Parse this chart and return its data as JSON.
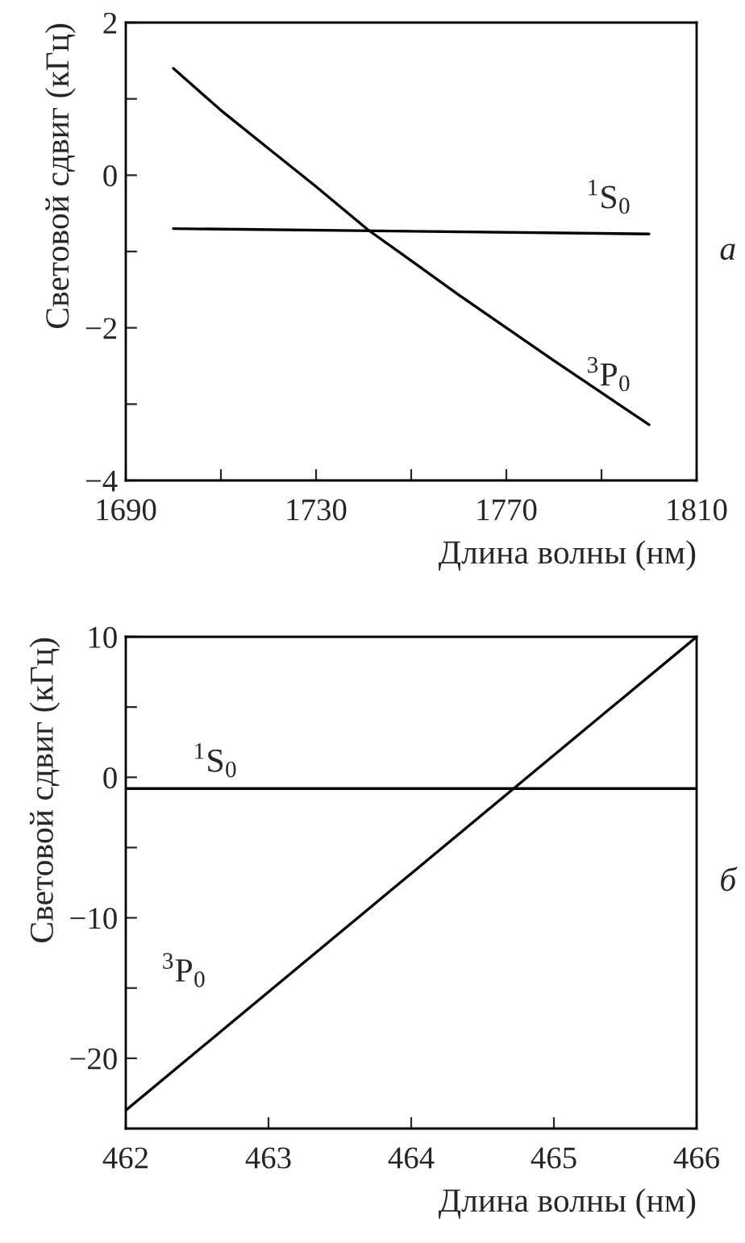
{
  "chart_data": [
    {
      "type": "line",
      "xlabel": "Длина волны (нм)",
      "ylabel": "Световой сдвиг (кГц)",
      "annotations": [
        "а"
      ],
      "xlim": [
        1690,
        1810
      ],
      "xticks": [
        1690,
        {
          "value": 1710,
          "label": null
        },
        1730,
        {
          "value": 1750,
          "label": null
        },
        1770,
        {
          "value": 1790,
          "label": null
        },
        1810
      ],
      "ylim": [
        -4,
        2
      ],
      "yticks": [
        {
          "value": -4,
          "label": "−4"
        },
        {
          "value": -3,
          "label": null
        },
        {
          "value": -2,
          "label": "−2"
        },
        {
          "value": -1,
          "label": null
        },
        0,
        {
          "value": 1,
          "label": null
        },
        2
      ],
      "grid": false,
      "legend": false,
      "line_style": "solid",
      "series": [
        {
          "name": "$^{1}$S$_{0}$",
          "color": "#000000",
          "x": [
            1700,
            1800
          ],
          "values": [
            -0.7,
            -0.77
          ]
        },
        {
          "name": "$^{3}$P$_{0}$",
          "color": "#000000",
          "x": [
            1700,
            1710,
            1720,
            1730,
            1741,
            1750,
            1760,
            1770,
            1780,
            1790,
            1800
          ],
          "values": [
            1.4,
            0.85,
            0.35,
            -0.15,
            -0.72,
            -1.12,
            -1.57,
            -2.0,
            -2.43,
            -2.85,
            -3.27
          ]
        }
      ]
    },
    {
      "type": "line",
      "xlabel": "Длина волны (нм)",
      "ylabel": "Световой сдвиг (кГц)",
      "annotations": [
        "б"
      ],
      "xlim": [
        462,
        466
      ],
      "xticks": [
        462,
        463,
        464,
        465,
        466
      ],
      "ylim": [
        -25,
        10
      ],
      "yticks": [
        {
          "value": -20,
          "label": "−20"
        },
        {
          "value": -15,
          "label": null
        },
        {
          "value": -10,
          "label": "−10"
        },
        {
          "value": -5,
          "label": null
        },
        0,
        {
          "value": 5,
          "label": null
        },
        10
      ],
      "grid": false,
      "legend": false,
      "line_style": "solid",
      "series": [
        {
          "name": "$^{1}$S$_{0}$",
          "color": "#000000",
          "x": [
            462,
            466
          ],
          "values": [
            -0.8,
            -0.8
          ]
        },
        {
          "name": "$^{3}$P$_{0}$",
          "color": "#000000",
          "x": [
            462,
            466
          ],
          "values": [
            -23.7,
            10
          ]
        }
      ]
    }
  ]
}
